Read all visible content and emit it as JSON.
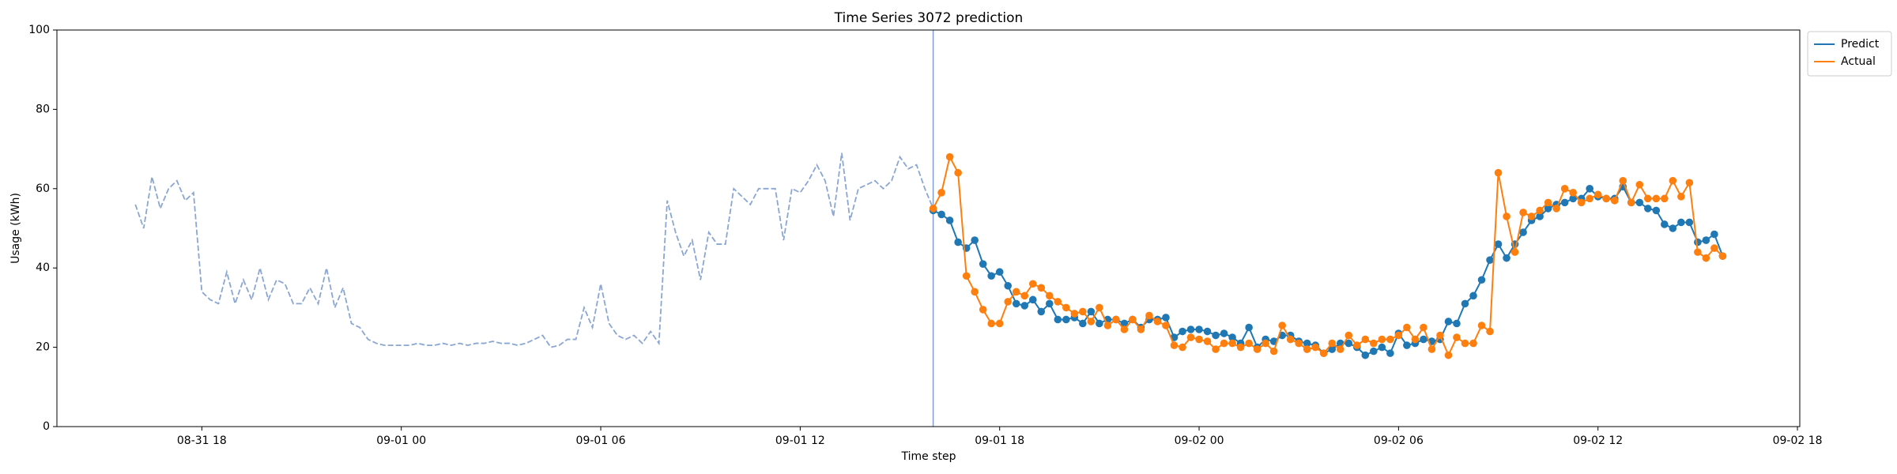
{
  "chart_data": {
    "type": "line",
    "title": "Time Series 3072 prediction",
    "x_label": "Time step",
    "y_label": "Usage (kWh)",
    "xlim": [
      13.64,
      66.07
    ],
    "xticks": [
      {
        "value": 18,
        "label": "08-31 18"
      },
      {
        "value": 24,
        "label": "09-01 00"
      },
      {
        "value": 30,
        "label": "09-01 06"
      },
      {
        "value": 36,
        "label": "09-01 12"
      },
      {
        "value": 42,
        "label": "09-01 18"
      },
      {
        "value": 48,
        "label": "09-02 00"
      },
      {
        "value": 54,
        "label": "09-02 06"
      },
      {
        "value": 60,
        "label": "09-02 12"
      },
      {
        "value": 66,
        "label": "09-02 18"
      }
    ],
    "ylim": [
      0,
      100
    ],
    "yticks": [
      0,
      20,
      40,
      60,
      80,
      100
    ],
    "grid": false,
    "legend": "outside-upper-right",
    "vline": {
      "x": 40,
      "color": "#7f9fd0"
    },
    "history": {
      "color": "#8aa6d2",
      "dashed": true,
      "x": [
        16,
        16.25,
        16.5,
        16.75,
        17,
        17.25,
        17.5,
        17.75,
        18,
        18.25,
        18.5,
        18.75,
        19,
        19.25,
        19.5,
        19.75,
        20,
        20.25,
        20.5,
        20.75,
        21,
        21.25,
        21.5,
        21.75,
        22,
        22.25,
        22.5,
        22.75,
        23,
        23.25,
        23.5,
        23.75,
        24,
        24.25,
        24.5,
        24.75,
        25,
        25.25,
        25.5,
        25.75,
        26,
        26.25,
        26.5,
        26.75,
        27,
        27.25,
        27.5,
        27.75,
        28,
        28.25,
        28.5,
        28.75,
        29,
        29.25,
        29.5,
        29.75,
        30,
        30.25,
        30.5,
        30.75,
        31,
        31.25,
        31.5,
        31.75,
        32,
        32.25,
        32.5,
        32.75,
        33,
        33.25,
        33.5,
        33.75,
        34,
        34.25,
        34.5,
        34.75,
        35,
        35.25,
        35.5,
        35.75,
        36,
        36.25,
        36.5,
        36.75,
        37,
        37.25,
        37.5,
        37.75,
        38,
        38.25,
        38.5,
        38.75,
        39,
        39.25,
        39.5,
        39.75,
        40
      ],
      "values": [
        56,
        50,
        63,
        55,
        60,
        62,
        57,
        59,
        34,
        32,
        31,
        39,
        31,
        37,
        32,
        40,
        32,
        37,
        36,
        31,
        31,
        35,
        31,
        40,
        30,
        35,
        26,
        25,
        22,
        21,
        20.5,
        20.5,
        20.5,
        20.5,
        21,
        20.5,
        20.5,
        21,
        20.5,
        21,
        20.5,
        21,
        21,
        21.5,
        21,
        21,
        20.5,
        21,
        22,
        23,
        20,
        20.5,
        22,
        22,
        30,
        25,
        36,
        26,
        23,
        22,
        23,
        21,
        24,
        21,
        57,
        49,
        43,
        47,
        37,
        49,
        46,
        46,
        60,
        58,
        56,
        60,
        60,
        60,
        47,
        60,
        59,
        62,
        66,
        62,
        53,
        69,
        52,
        60,
        61,
        62,
        60,
        62,
        68,
        65,
        66,
        60,
        55
      ]
    },
    "series": [
      {
        "name": "Predict",
        "color": "#1f77b4",
        "x": [
          40,
          40.25,
          40.5,
          40.75,
          41,
          41.25,
          41.5,
          41.75,
          42,
          42.25,
          42.5,
          42.75,
          43,
          43.25,
          43.5,
          43.75,
          44,
          44.25,
          44.5,
          44.75,
          45,
          45.25,
          45.5,
          45.75,
          46,
          46.25,
          46.5,
          46.75,
          47,
          47.25,
          47.5,
          47.75,
          48,
          48.25,
          48.5,
          48.75,
          49,
          49.25,
          49.5,
          49.75,
          50,
          50.25,
          50.5,
          50.75,
          51,
          51.25,
          51.5,
          51.75,
          52,
          52.25,
          52.5,
          52.75,
          53,
          53.25,
          53.5,
          53.75,
          54,
          54.25,
          54.5,
          54.75,
          55,
          55.25,
          55.5,
          55.75,
          56,
          56.25,
          56.5,
          56.75,
          57,
          57.25,
          57.5,
          57.75,
          58,
          58.25,
          58.5,
          58.75,
          59,
          59.25,
          59.5,
          59.75,
          60,
          60.25,
          60.5,
          60.75,
          61,
          61.25,
          61.5,
          61.75,
          62,
          62.25,
          62.5,
          62.75,
          63,
          63.25,
          63.5,
          63.75
        ],
        "values": [
          54.5,
          53.5,
          52,
          46.5,
          45,
          47,
          41,
          38,
          39,
          35.5,
          31,
          30.5,
          32,
          29,
          31,
          27,
          27,
          27.5,
          26,
          29,
          26,
          27,
          27,
          26,
          27,
          25,
          27,
          27,
          27.5,
          22.5,
          24,
          24.5,
          24.5,
          24,
          23,
          23.5,
          22.5,
          21,
          25,
          20,
          22,
          21.5,
          23,
          23,
          21.5,
          21,
          20.5,
          18.5,
          19.5,
          21,
          21,
          20,
          18,
          19,
          20,
          18.5,
          23.5,
          20.5,
          21,
          22,
          21.5,
          22,
          26.5,
          26,
          31,
          33,
          37,
          42,
          46,
          42.5,
          46,
          49,
          52,
          53,
          55,
          56,
          56.5,
          57.5,
          57.5,
          60,
          58,
          57.5,
          57.5,
          60.5,
          56.5,
          56.5,
          55,
          54.5,
          51,
          50,
          51.5,
          51.5,
          46.5,
          47,
          48.5,
          43
        ]
      },
      {
        "name": "Actual",
        "color": "#ff7f0e",
        "x": [
          40,
          40.25,
          40.5,
          40.75,
          41,
          41.25,
          41.5,
          41.75,
          42,
          42.25,
          42.5,
          42.75,
          43,
          43.25,
          43.5,
          43.75,
          44,
          44.25,
          44.5,
          44.75,
          45,
          45.25,
          45.5,
          45.75,
          46,
          46.25,
          46.5,
          46.75,
          47,
          47.25,
          47.5,
          47.75,
          48,
          48.25,
          48.5,
          48.75,
          49,
          49.25,
          49.5,
          49.75,
          50,
          50.25,
          50.5,
          50.75,
          51,
          51.25,
          51.5,
          51.75,
          52,
          52.25,
          52.5,
          52.75,
          53,
          53.25,
          53.5,
          53.75,
          54,
          54.25,
          54.5,
          54.75,
          55,
          55.25,
          55.5,
          55.75,
          56,
          56.25,
          56.5,
          56.75,
          57,
          57.25,
          57.5,
          57.75,
          58,
          58.25,
          58.5,
          58.75,
          59,
          59.25,
          59.5,
          59.75,
          60,
          60.25,
          60.5,
          60.75,
          61,
          61.25,
          61.5,
          61.75,
          62,
          62.25,
          62.5,
          62.75,
          63,
          63.25,
          63.5,
          63.75
        ],
        "values": [
          55,
          59,
          68,
          64,
          38,
          34,
          29.5,
          26,
          26,
          31.5,
          34,
          33,
          36,
          35,
          33,
          31.5,
          30,
          28.5,
          29,
          26.5,
          30,
          25.5,
          27,
          24.5,
          27,
          24.5,
          28,
          26.5,
          25.5,
          20.5,
          20,
          22.5,
          22,
          21.5,
          19.5,
          21,
          21,
          20,
          21,
          19.5,
          21,
          19,
          25.5,
          22,
          21,
          19.5,
          20,
          18.5,
          21,
          19.5,
          23,
          20.5,
          22,
          21,
          22,
          22,
          23,
          25,
          22,
          25,
          19.5,
          23,
          18,
          22.5,
          21,
          21,
          25.5,
          24,
          64,
          53,
          44,
          54,
          53,
          54.5,
          56.5,
          55,
          60,
          59,
          56.5,
          57.5,
          58.5,
          57.5,
          57,
          62,
          56.5,
          61,
          57.5,
          57.5,
          57.5,
          62,
          58,
          61.5,
          44,
          42.5,
          45,
          43
        ]
      }
    ]
  }
}
